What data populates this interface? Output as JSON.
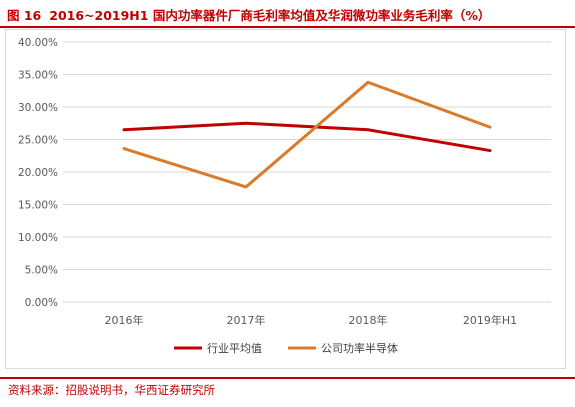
{
  "figure": {
    "number": "图 16",
    "title": "2016~2019H1 国内功率器件厂商毛利率均值及华润微功率业务毛利率（%）"
  },
  "source": "资料来源：招股说明书，华西证券研究所",
  "colors": {
    "title": "#c00000",
    "industry": "#c00000",
    "company": "#d87b2a",
    "grid": "#d9d9d9",
    "axis_text": "#595959"
  },
  "chart_data": {
    "type": "line",
    "categories": [
      "2016年",
      "2017年",
      "2018年",
      "2019年H1"
    ],
    "y_ticks": [
      "0.00%",
      "5.00%",
      "10.00%",
      "15.00%",
      "20.00%",
      "25.00%",
      "30.00%",
      "35.00%",
      "40.00%"
    ],
    "ylim": [
      0,
      40
    ],
    "grid": true,
    "legend_position": "bottom",
    "series": [
      {
        "name": "行业平均值",
        "values": [
          26.5,
          27.5,
          26.5,
          23.3
        ]
      },
      {
        "name": "公司功率半导体",
        "values": [
          23.6,
          17.7,
          33.8,
          26.9
        ]
      }
    ]
  }
}
